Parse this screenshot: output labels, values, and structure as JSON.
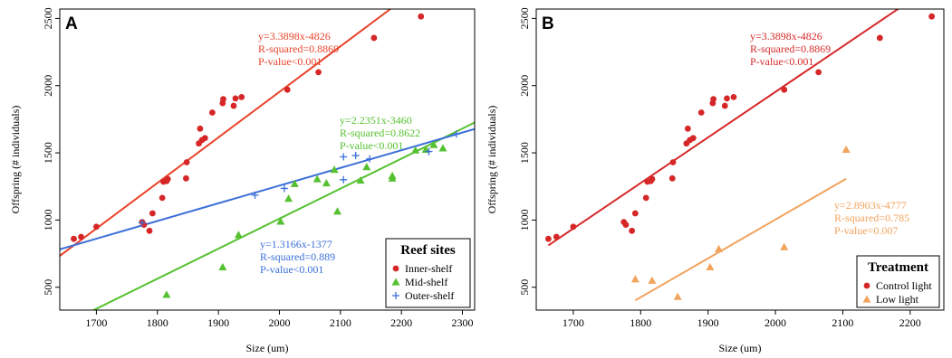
{
  "chart_data": [
    {
      "type": "scatter",
      "panel": "A",
      "xlabel": "Size (um)",
      "ylabel": "Offspring (# individuals)",
      "xlim": [
        1640,
        2320
      ],
      "ylim": [
        330,
        2570
      ],
      "xticks": [
        1700,
        1800,
        1900,
        2000,
        2100,
        2200,
        2300
      ],
      "yticks": [
        500,
        1000,
        1500,
        2000,
        2500
      ],
      "grid": false,
      "legend": {
        "title": "Reef sites",
        "position": "bottom-right"
      },
      "series": [
        {
          "name": "Inner-shelf",
          "marker": "circle",
          "color": "#d62728",
          "line_color": "#e8432a",
          "fit": {
            "slope": 3.3898,
            "intercept": -4826
          },
          "annotation": [
            "y=3.3898x-4826",
            "R-squared=0.8869",
            "P-value<0.001"
          ],
          "points": [
            [
              1663,
              860
            ],
            [
              1675,
              875
            ],
            [
              1700,
              950
            ],
            [
              1775,
              985
            ],
            [
              1778,
              965
            ],
            [
              1787,
              920
            ],
            [
              1792,
              1050
            ],
            [
              1808,
              1165
            ],
            [
              1810,
              1285
            ],
            [
              1815,
              1290
            ],
            [
              1817,
              1305
            ],
            [
              1847,
              1310
            ],
            [
              1848,
              1430
            ],
            [
              1868,
              1570
            ],
            [
              1870,
              1680
            ],
            [
              1873,
              1595
            ],
            [
              1878,
              1610
            ],
            [
              1890,
              1800
            ],
            [
              1907,
              1870
            ],
            [
              1908,
              1900
            ],
            [
              1925,
              1850
            ],
            [
              1928,
              1905
            ],
            [
              1938,
              1915
            ],
            [
              2013,
              1970
            ],
            [
              2064,
              2100
            ],
            [
              2155,
              2355
            ],
            [
              2232,
              2515
            ]
          ]
        },
        {
          "name": "Mid-shelf",
          "marker": "triangle",
          "color": "#56c130",
          "line_color": "#56c130",
          "fit": {
            "slope": 2.2351,
            "intercept": -3460
          },
          "annotation": [
            "y=2.2351x-3460",
            "R-squared=0.8622",
            "P-value<0.001"
          ],
          "points": [
            [
              1815,
              445
            ],
            [
              1907,
              650
            ],
            [
              1933,
              890
            ],
            [
              2002,
              990
            ],
            [
              2015,
              1160
            ],
            [
              2025,
              1270
            ],
            [
              2062,
              1305
            ],
            [
              2077,
              1275
            ],
            [
              2090,
              1375
            ],
            [
              2095,
              1065
            ],
            [
              2133,
              1295
            ],
            [
              2143,
              1395
            ],
            [
              2185,
              1310
            ],
            [
              2185,
              1330
            ],
            [
              2223,
              1520
            ],
            [
              2240,
              1525
            ],
            [
              2253,
              1560
            ],
            [
              2268,
              1535
            ]
          ]
        },
        {
          "name": "Outer-shelf",
          "marker": "plus",
          "color": "#3b6fd9",
          "line_color": "#3b6fd9",
          "fit": {
            "slope": 1.3166,
            "intercept": -1377
          },
          "annotation": [
            "y=1.3166x-1377",
            "R-squared=0.889",
            "P-value<0.001"
          ],
          "points": [
            [
              1775,
              980
            ],
            [
              1960,
              1185
            ],
            [
              2008,
              1235
            ],
            [
              2105,
              1300
            ],
            [
              2105,
              1470
            ],
            [
              2125,
              1480
            ],
            [
              2148,
              1455
            ],
            [
              2245,
              1510
            ],
            [
              2290,
              1640
            ]
          ]
        }
      ]
    },
    {
      "type": "scatter",
      "panel": "B",
      "xlabel": "Size (um)",
      "ylabel": "Offspring (# individuals)",
      "xlim": [
        1645,
        2250
      ],
      "ylim": [
        330,
        2570
      ],
      "xticks": [
        1700,
        1800,
        1900,
        2000,
        2100,
        2200
      ],
      "yticks": [
        500,
        1000,
        1500,
        2000,
        2500
      ],
      "grid": false,
      "legend": {
        "title": "Treatment",
        "position": "bottom-right"
      },
      "series": [
        {
          "name": "Control light",
          "marker": "circle",
          "color": "#d62728",
          "line_color": "#d62728",
          "fit": {
            "slope": 3.3898,
            "intercept": -4826
          },
          "annotation": [
            "y=3.3898x-4826",
            "R-squared=0.8869",
            "P-value<0.001"
          ],
          "points": [
            [
              1663,
              860
            ],
            [
              1675,
              875
            ],
            [
              1700,
              950
            ],
            [
              1775,
              985
            ],
            [
              1778,
              965
            ],
            [
              1787,
              920
            ],
            [
              1792,
              1050
            ],
            [
              1808,
              1165
            ],
            [
              1810,
              1285
            ],
            [
              1815,
              1290
            ],
            [
              1817,
              1305
            ],
            [
              1847,
              1310
            ],
            [
              1848,
              1430
            ],
            [
              1868,
              1570
            ],
            [
              1870,
              1680
            ],
            [
              1873,
              1595
            ],
            [
              1878,
              1610
            ],
            [
              1890,
              1800
            ],
            [
              1907,
              1870
            ],
            [
              1908,
              1900
            ],
            [
              1925,
              1850
            ],
            [
              1928,
              1905
            ],
            [
              1938,
              1915
            ],
            [
              2013,
              1970
            ],
            [
              2064,
              2100
            ],
            [
              2155,
              2355
            ],
            [
              2232,
              2515
            ]
          ]
        },
        {
          "name": "Low light",
          "marker": "triangle",
          "color": "#f2a35e",
          "line_color": "#f2a35e",
          "fit": {
            "slope": 2.8903,
            "intercept": -4777
          },
          "annotation": [
            "y=2.8903x-4777",
            "R-squared=0.785",
            "P-value=0.007"
          ],
          "points": [
            [
              1792,
              560
            ],
            [
              1817,
              550
            ],
            [
              1855,
              430
            ],
            [
              1903,
              650
            ],
            [
              1916,
              785
            ],
            [
              2013,
              800
            ],
            [
              2105,
              1525
            ]
          ]
        }
      ]
    }
  ]
}
